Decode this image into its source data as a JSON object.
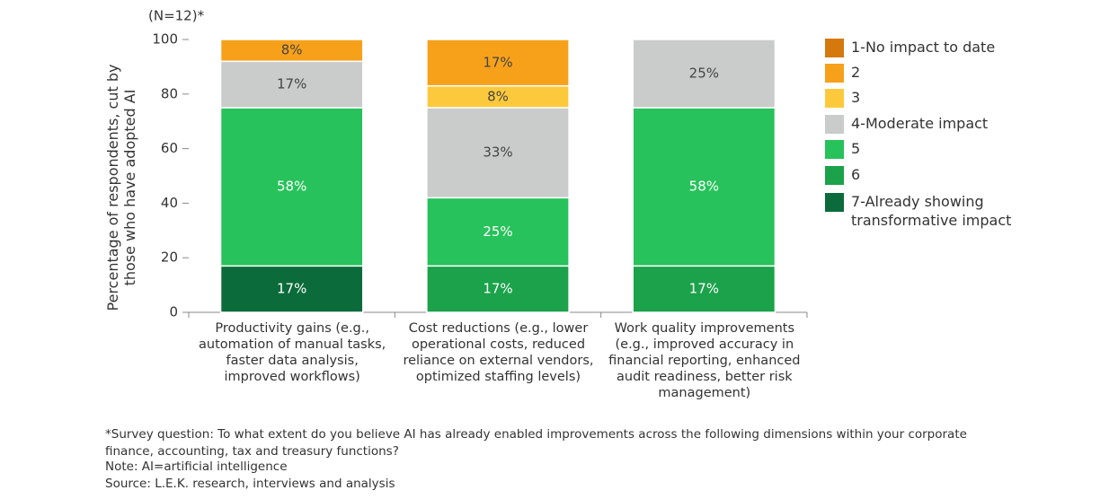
{
  "chart_data": {
    "type": "stacked-bar",
    "subtitle": "(N=12)*",
    "y_label": "Percentage of respondents, cut by those who have adopted AI",
    "categories": [
      "Productivity gains (e.g., automation of manual tasks, faster data analysis, improved workflows)",
      "Cost reductions (e.g., lower operational costs, reduced reliance on external vendors, optimized staffing levels)",
      "Work quality improvements (e.g., improved accuracy in financial reporting, enhanced audit readiness, better risk management)"
    ],
    "series": [
      {
        "name": "7-Already showing transformative impact",
        "color": "#0b6b3a",
        "values": [
          17,
          null,
          null
        ],
        "value_labels": [
          "17%",
          null,
          null
        ]
      },
      {
        "name": "6",
        "color": "#1ba24a",
        "values": [
          null,
          17,
          17
        ],
        "value_labels": [
          null,
          "17%",
          "17%"
        ]
      },
      {
        "name": "5",
        "color": "#27c25b",
        "values": [
          58,
          25,
          58
        ],
        "value_labels": [
          "58%",
          "25%",
          "58%"
        ]
      },
      {
        "name": "4-Moderate impact",
        "color": "#c9cccb",
        "values": [
          17,
          33,
          25
        ],
        "value_labels": [
          "17%",
          "33%",
          "25%"
        ]
      },
      {
        "name": "3",
        "color": "#fdc93c",
        "values": [
          null,
          8,
          null
        ],
        "value_labels": [
          null,
          "8%",
          null
        ]
      },
      {
        "name": "2",
        "color": "#f7a11b",
        "values": [
          8,
          17,
          null
        ],
        "value_labels": [
          "8%",
          "17%",
          null
        ]
      },
      {
        "name": "1-No impact to date",
        "color": "#d5780e",
        "values": [
          null,
          null,
          null
        ],
        "value_labels": [
          null,
          null,
          null
        ]
      }
    ],
    "ylim": [
      0,
      100
    ],
    "yticks": [
      0,
      20,
      40,
      60,
      80,
      100
    ],
    "notes": [
      "*Survey question: To what extent do you believe AI has already enabled improvements across the following dimensions within your corporate finance, accounting, tax and treasury functions?",
      "Note: AI=artificial intelligence",
      "Source: L.E.K. research, interviews and analysis"
    ]
  }
}
